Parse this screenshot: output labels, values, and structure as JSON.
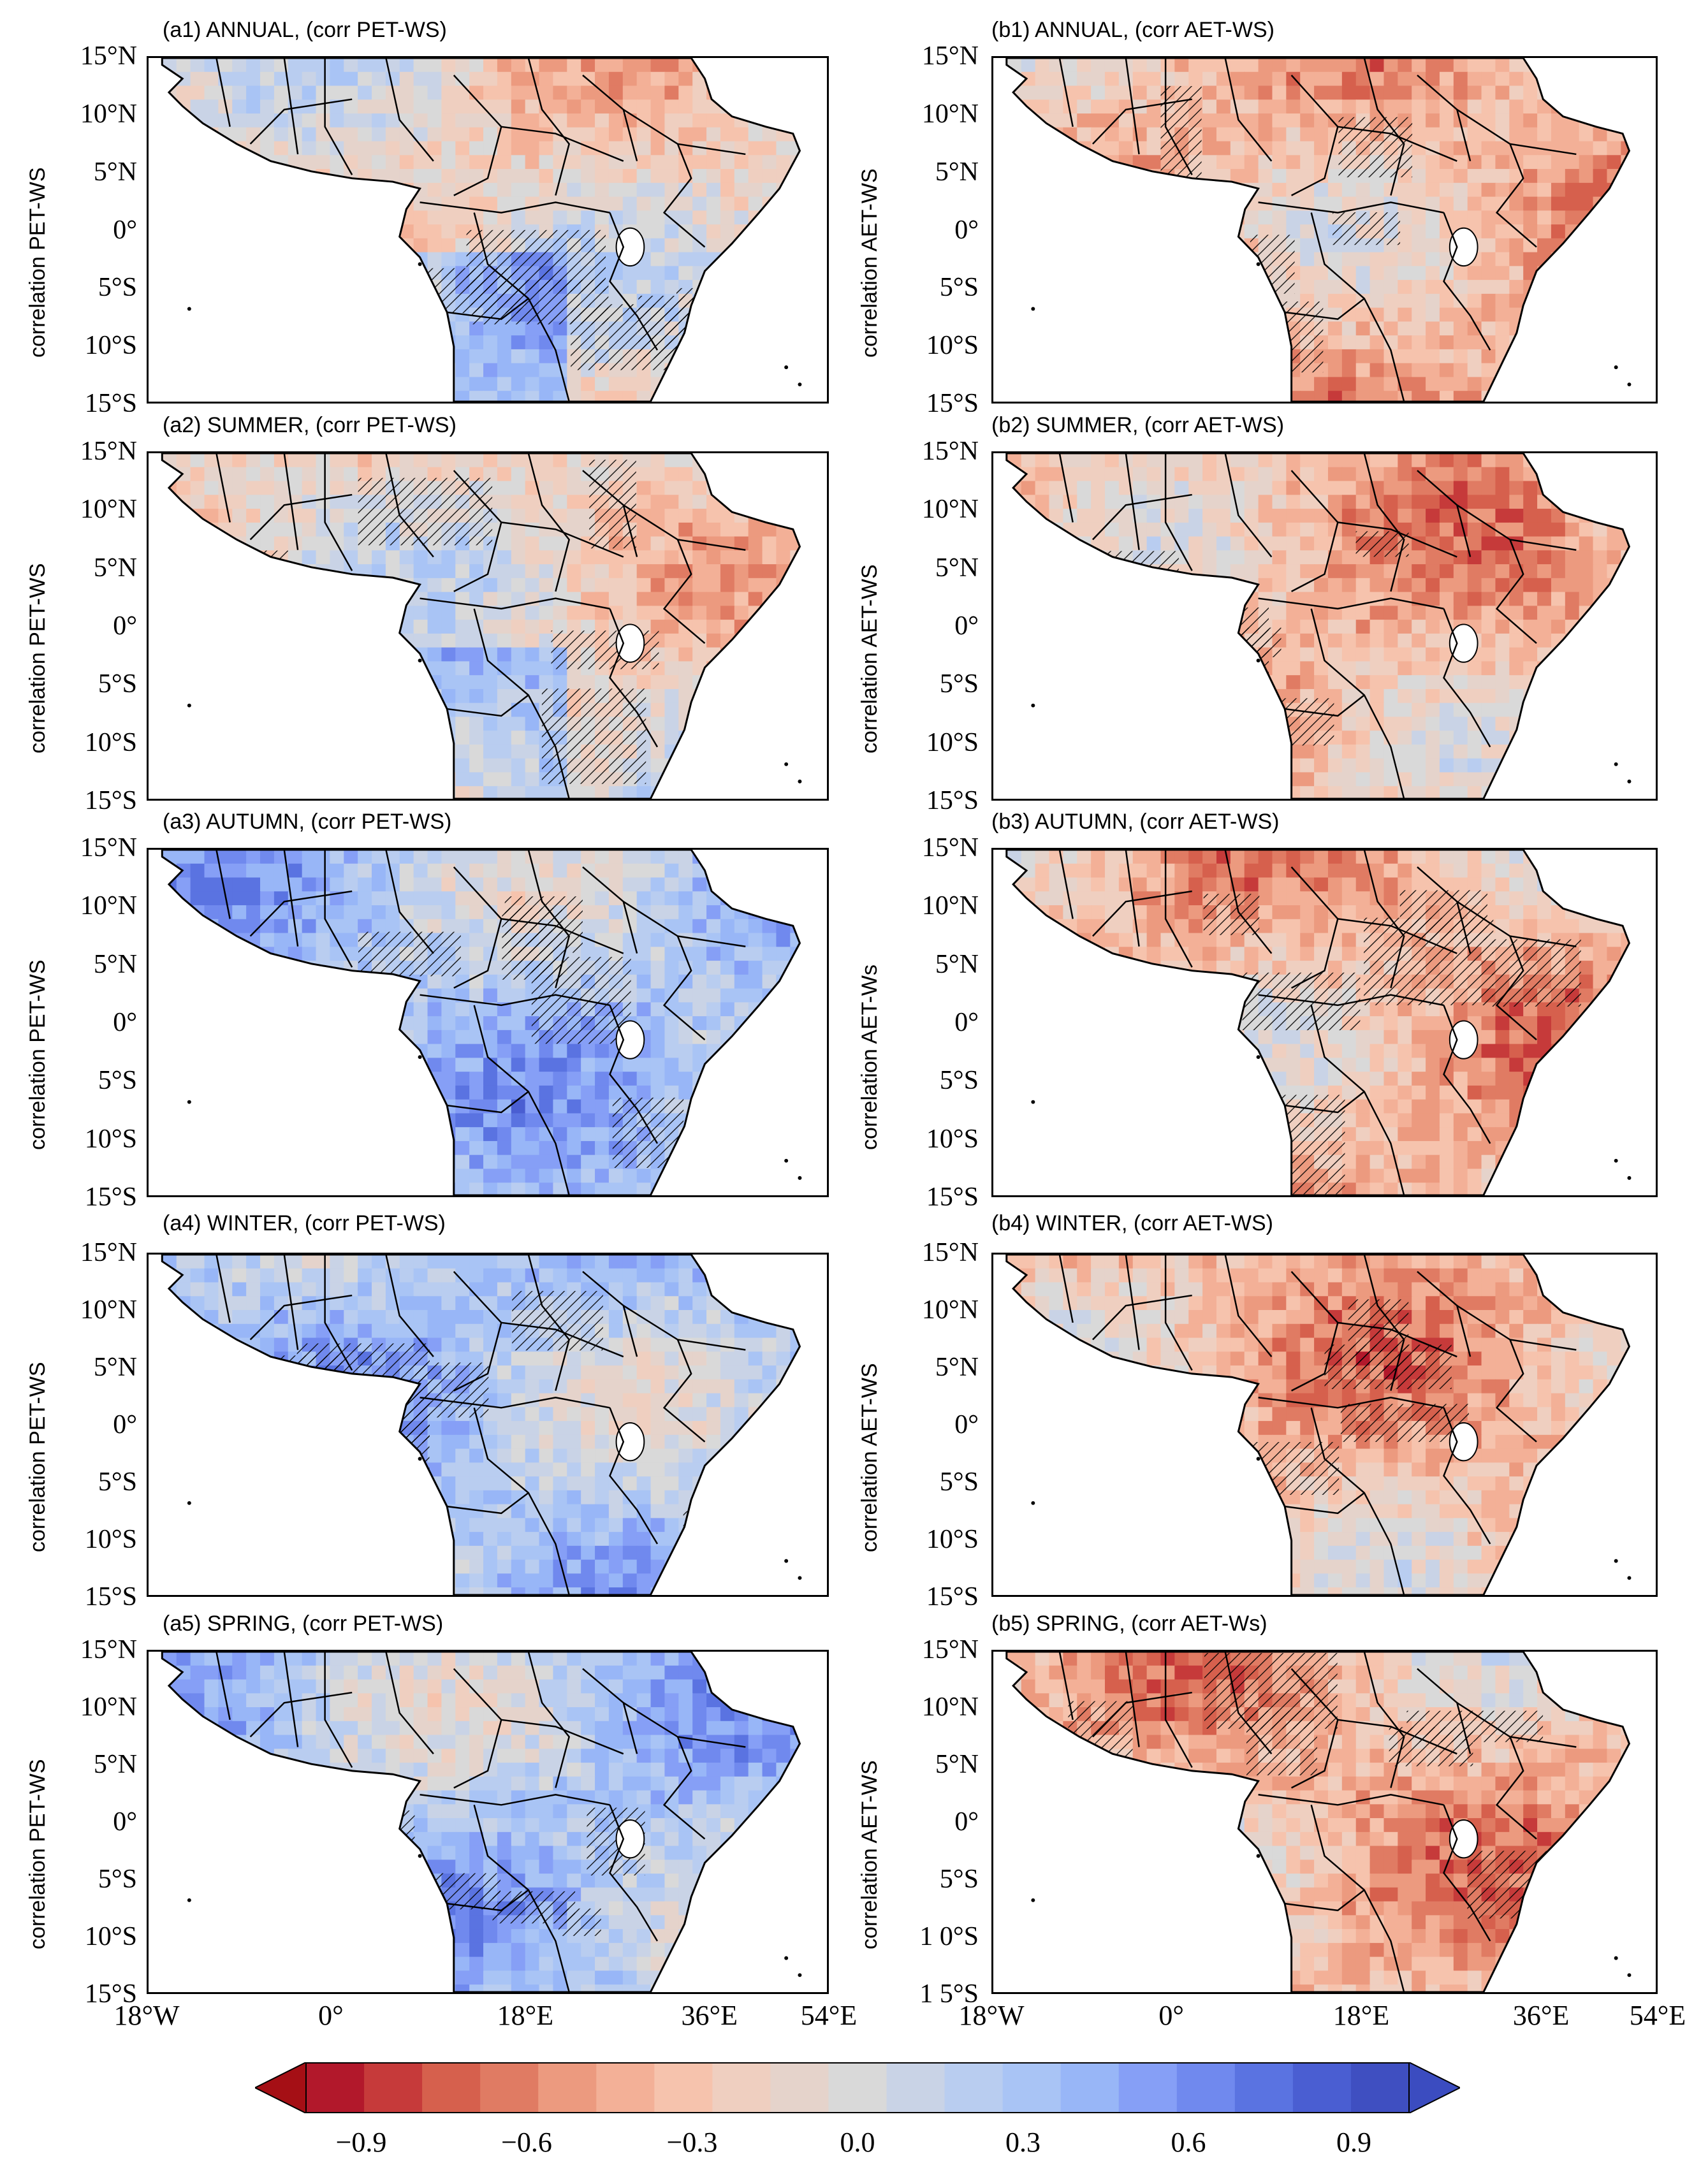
{
  "panels": [
    {
      "id": "a1",
      "title": "(a1) ANNUAL,  (corr PET-WS)",
      "ylabel": "correlation  PET-WS",
      "tone": "mixed"
    },
    {
      "id": "b1",
      "title": "(b1) ANNUAL,  (corr AET-WS)",
      "ylabel": "correlation  AET-WS",
      "tone": "red"
    },
    {
      "id": "a2",
      "title": "(a2) SUMMER,  (corr PET-WS)",
      "ylabel": "correlation  PET-WS",
      "tone": "mixed"
    },
    {
      "id": "b2",
      "title": "(b2) SUMMER,  (corr AET-WS)",
      "ylabel": "correlation  AET-WS",
      "tone": "red"
    },
    {
      "id": "a3",
      "title": "(a3) AUTUMN,  (corr PET-WS)",
      "ylabel": "correlation  PET-WS",
      "tone": "blue"
    },
    {
      "id": "b3",
      "title": "(b3) AUTUMN,  (corr AET-WS)",
      "ylabel": "correlation  AET-Ws",
      "tone": "red"
    },
    {
      "id": "a4",
      "title": "(a4) WINTER,  (corr PET-WS)",
      "ylabel": "correlation  PET-WS",
      "tone": "blue"
    },
    {
      "id": "b4",
      "title": "(b4) WINTER,  (corr AET-WS)",
      "ylabel": "correlation  AET-WS",
      "tone": "red"
    },
    {
      "id": "a5",
      "title": "(a5) SPRING,  (corr PET-WS)",
      "ylabel": "correlation  PET-WS",
      "tone": "blue"
    },
    {
      "id": "b5",
      "title": "(b5) SPRING,  (corr AET-Ws)",
      "ylabel": "correlation  AET-WS",
      "tone": "red"
    }
  ],
  "lat_labels": [
    "15°N",
    "10°N",
    "5°N",
    "0°",
    "5°S",
    "10°S",
    "15°S"
  ],
  "lat_labels_b5": [
    "15°N",
    "10°N",
    "5°N",
    "0°",
    "5°S",
    "1  0°S",
    "1  5°S"
  ],
  "lon_labels": [
    "18°W",
    "0°",
    "18°E",
    "36°E",
    "54°E"
  ],
  "colorbar": {
    "min": -1.0,
    "max": 1.0,
    "levels": [
      -0.9,
      -0.8,
      -0.7,
      -0.6,
      -0.5,
      -0.4,
      -0.3,
      -0.2,
      -0.1,
      0.0,
      0.1,
      0.2,
      0.3,
      0.4,
      0.5,
      0.6,
      0.7,
      0.8,
      0.9
    ],
    "colors": [
      "#b2182b",
      "#c63a3a",
      "#d6604d",
      "#e07b63",
      "#ec9a7f",
      "#f3b097",
      "#f6c3ad",
      "#efcfc0",
      "#e5d3cb",
      "#d9d9d9",
      "#c9d3e6",
      "#b9cdf0",
      "#a9c4f5",
      "#98b6f7",
      "#869ff6",
      "#7089ee",
      "#5a73e1",
      "#4a5ed2",
      "#3f4fc1"
    ],
    "extend_colors": {
      "low": "#a50f15",
      "high": "#3b4cc0"
    },
    "ticks": [
      "−0.9",
      "−0.6",
      "−0.3",
      "0.0",
      "0.3",
      "0.6",
      "0.9"
    ],
    "tick_values": [
      -0.9,
      -0.6,
      -0.3,
      0.0,
      0.3,
      0.6,
      0.9
    ]
  },
  "colors": {
    "ocean": "#ffffff",
    "land_base": "#dcdcdc",
    "border": "#000000",
    "hatch": "#000000"
  }
}
